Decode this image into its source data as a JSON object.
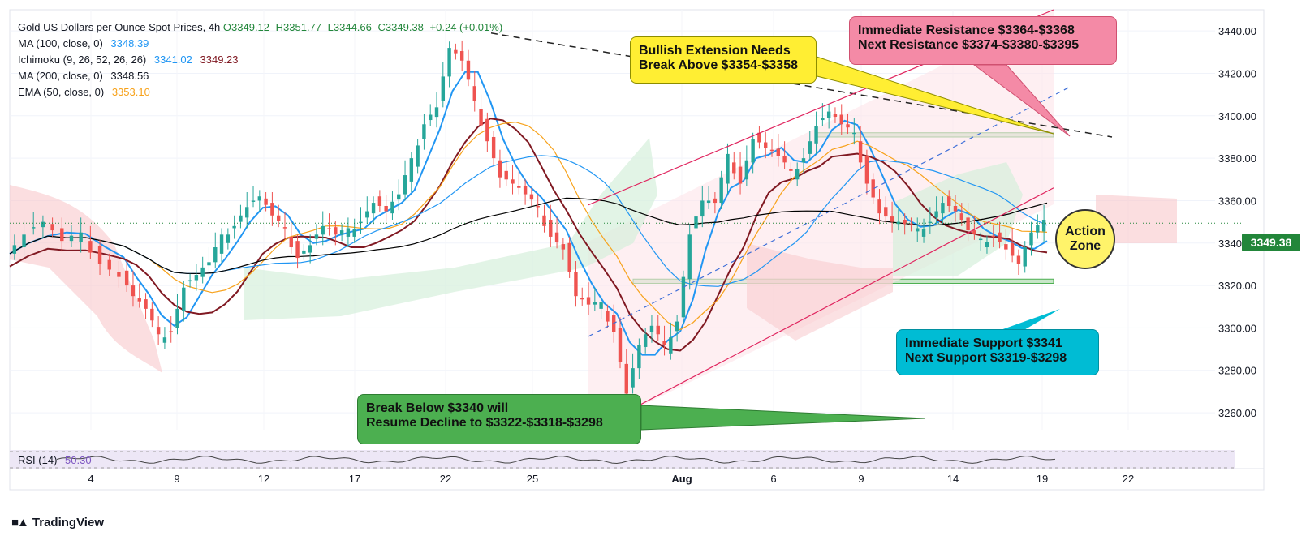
{
  "legend": {
    "title": "Gold US Dollars per Ounce Spot Prices, 4h",
    "ohlc": {
      "o": "O3349.12",
      "h": "H3351.77",
      "l": "L3344.66",
      "c": "C3349.38",
      "chg": "+0.24 (+0.01%)"
    },
    "ma100": {
      "label": "MA (100, close, 0)",
      "value": "3348.39"
    },
    "ichimoku": {
      "label": "Ichimoku (9, 26, 52, 26, 26)",
      "value1": "3341.02",
      "value2": "3349.23"
    },
    "ma200": {
      "label": "MA (200, close, 0)",
      "value": "3348.56"
    },
    "ema50": {
      "label": "EMA (50, close, 0)",
      "value": "3353.10"
    }
  },
  "callouts": {
    "yellow": {
      "line1": "Bullish Extension Needs",
      "line2": "Break Above $3354-$3358"
    },
    "pink": {
      "line1": "Immediate Resistance $3364-$3368",
      "line2": "Next Resistance $3374-$3380-$3395"
    },
    "teal": {
      "line1": "Immediate Support $3341",
      "line2": "Next Support $3319-$3298"
    },
    "green": {
      "line1": "Break Below $3340 will",
      "line2": "Resume Decline to $3322-$3318-$3298"
    },
    "action": {
      "line1": "Action",
      "line2": "Zone"
    }
  },
  "price_tag": "3349.38",
  "rsi": {
    "label": "RSI (14)",
    "value": "50.30"
  },
  "brand": "TradingView",
  "chart_data": {
    "type": "candlestick",
    "title": "Gold US Dollars per Ounce Spot Prices, 4h",
    "y_ticks": [
      "3440.00",
      "3420.00",
      "3400.00",
      "3380.00",
      "3360.00",
      "3340.00",
      "3320.00",
      "3300.00",
      "3280.00",
      "3260.00"
    ],
    "ylim": [
      3252,
      3450
    ],
    "x_ticks": [
      "4",
      "9",
      "12",
      "17",
      "22",
      "25",
      "Aug",
      "6",
      "9",
      "14",
      "19",
      "22"
    ],
    "colors": {
      "up": "#26a69a",
      "down": "#ef5350",
      "ma100": "#2196f3",
      "ma200": "#000000",
      "ema50": "#f7a21b",
      "ichimoku_base": "#801922",
      "ichimoku_conv": "#2196f3"
    },
    "close_path": [
      [
        0,
        3335
      ],
      [
        6,
        3345
      ],
      [
        12,
        3350
      ],
      [
        18,
        3340
      ],
      [
        24,
        3343
      ],
      [
        30,
        3332
      ],
      [
        36,
        3325
      ],
      [
        40,
        3315
      ],
      [
        44,
        3308
      ],
      [
        48,
        3295
      ],
      [
        52,
        3300
      ],
      [
        56,
        3320
      ],
      [
        60,
        3325
      ],
      [
        64,
        3330
      ],
      [
        68,
        3342
      ],
      [
        72,
        3350
      ],
      [
        76,
        3358
      ],
      [
        80,
        3362
      ],
      [
        84,
        3352
      ],
      [
        88,
        3345
      ],
      [
        92,
        3335
      ],
      [
        96,
        3340
      ],
      [
        100,
        3348
      ],
      [
        104,
        3343
      ],
      [
        108,
        3345
      ],
      [
        112,
        3352
      ],
      [
        116,
        3360
      ],
      [
        120,
        3355
      ],
      [
        124,
        3362
      ],
      [
        128,
        3378
      ],
      [
        132,
        3398
      ],
      [
        136,
        3405
      ],
      [
        140,
        3432
      ],
      [
        144,
        3425
      ],
      [
        148,
        3405
      ],
      [
        152,
        3390
      ],
      [
        156,
        3372
      ],
      [
        160,
        3368
      ],
      [
        164,
        3362
      ],
      [
        168,
        3355
      ],
      [
        172,
        3345
      ],
      [
        176,
        3338
      ],
      [
        180,
        3315
      ],
      [
        184,
        3310
      ],
      [
        188,
        3310
      ],
      [
        192,
        3300
      ],
      [
        196,
        3270
      ],
      [
        200,
        3292
      ],
      [
        204,
        3300
      ],
      [
        208,
        3290
      ],
      [
        212,
        3305
      ],
      [
        216,
        3345
      ],
      [
        220,
        3360
      ],
      [
        224,
        3358
      ],
      [
        228,
        3380
      ],
      [
        232,
        3370
      ],
      [
        236,
        3390
      ],
      [
        240,
        3385
      ],
      [
        244,
        3380
      ],
      [
        248,
        3372
      ],
      [
        252,
        3382
      ],
      [
        256,
        3396
      ],
      [
        260,
        3402
      ],
      [
        264,
        3395
      ],
      [
        268,
        3390
      ],
      [
        272,
        3370
      ],
      [
        276,
        3355
      ],
      [
        280,
        3350
      ],
      [
        284,
        3348
      ],
      [
        288,
        3345
      ],
      [
        292,
        3352
      ],
      [
        296,
        3360
      ],
      [
        300,
        3355
      ],
      [
        304,
        3345
      ],
      [
        308,
        3340
      ],
      [
        312,
        3345
      ],
      [
        316,
        3338
      ],
      [
        320,
        3330
      ],
      [
        324,
        3344
      ],
      [
        328,
        3349
      ]
    ],
    "levels": {
      "resistance_zone": [
        3390,
        3392
      ],
      "support_zone": [
        3321,
        3323
      ]
    },
    "rsi": {
      "value": 50.3
    }
  }
}
